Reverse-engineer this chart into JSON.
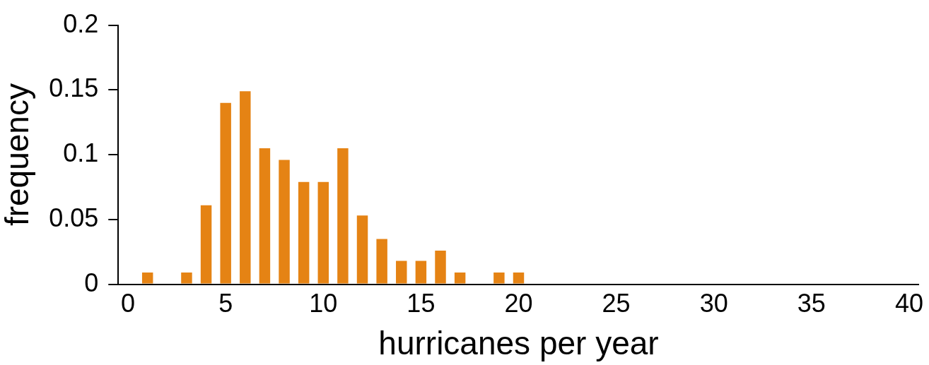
{
  "chart_data": {
    "type": "bar",
    "xlabel": "hurricanes per year",
    "ylabel": "frequency",
    "x": [
      1,
      3,
      4,
      5,
      6,
      7,
      8,
      9,
      10,
      11,
      12,
      13,
      14,
      15,
      16,
      17,
      19,
      20
    ],
    "values": [
      0.009,
      0.009,
      0.061,
      0.14,
      0.149,
      0.105,
      0.096,
      0.079,
      0.079,
      0.105,
      0.053,
      0.035,
      0.018,
      0.018,
      0.026,
      0.009,
      0.009,
      0.009
    ],
    "color": "#e58314",
    "xlim": [
      -0.5,
      40.5
    ],
    "xticks": [
      0,
      5,
      10,
      15,
      20,
      25,
      30,
      35,
      40
    ],
    "ylim": [
      0,
      0.2
    ],
    "yticks": [
      0,
      0.05,
      0.1,
      0.15,
      0.2
    ]
  }
}
